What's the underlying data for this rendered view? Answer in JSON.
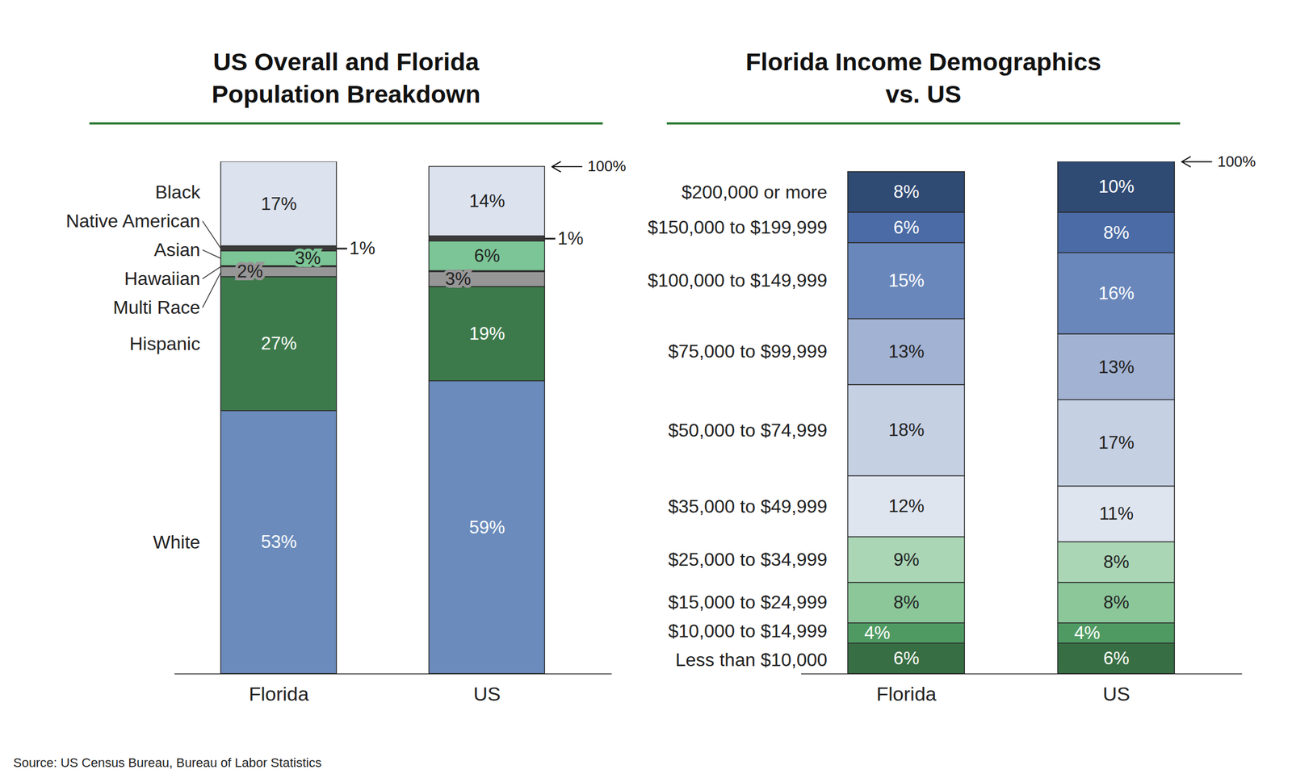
{
  "chart_data": [
    {
      "type": "bar",
      "title": "US Overall and Florida Population Breakdown",
      "categories": [
        "Florida",
        "US"
      ],
      "stacked": true,
      "data_labels": true,
      "tick_labels": "x",
      "annotation": "100%",
      "series": [
        {
          "name": "White",
          "color": "#6a8bbb",
          "values": [
            53,
            59
          ],
          "value_labels": [
            "53%",
            "59%"
          ]
        },
        {
          "name": "Hispanic",
          "color": "#3d7a4b",
          "values": [
            27,
            19
          ],
          "value_labels": [
            "27%",
            "19%"
          ]
        },
        {
          "name": "Multi Race",
          "color": "#969696",
          "values": [
            2,
            3
          ],
          "value_labels": [
            "2%",
            "3%"
          ]
        },
        {
          "name": "Hawaiian",
          "color": "#555555",
          "values": [
            0.2,
            0.2
          ],
          "value_labels": [
            null,
            null
          ]
        },
        {
          "name": "Asian",
          "color": "#7cc596",
          "values": [
            3,
            6
          ],
          "value_labels": [
            "3%",
            "6%"
          ]
        },
        {
          "name": "Native American",
          "color": "#3a3a3a",
          "values": [
            1,
            1
          ],
          "value_labels": [
            "1%",
            "1%"
          ]
        },
        {
          "name": "Black",
          "color": "#dce3ef",
          "values": [
            17,
            14
          ],
          "value_labels": [
            "17%",
            "14%"
          ]
        }
      ]
    },
    {
      "type": "bar",
      "title": "Florida Income Demographics vs. US",
      "categories": [
        "Florida",
        "US"
      ],
      "stacked": true,
      "data_labels": true,
      "tick_labels": "x",
      "annotation": "100%",
      "series": [
        {
          "name": "Less than $10,000",
          "color": "#386e44",
          "values": [
            6,
            6
          ],
          "value_labels": [
            "6%",
            "6%"
          ]
        },
        {
          "name": "$10,000 to $14,999",
          "color": "#4f9a63",
          "values": [
            4,
            4
          ],
          "value_labels": [
            "4%",
            "4%"
          ]
        },
        {
          "name": "$15,000 to $24,999",
          "color": "#8cc79a",
          "values": [
            8,
            8
          ],
          "value_labels": [
            "8%",
            "8%"
          ]
        },
        {
          "name": "$25,000 to $34,999",
          "color": "#abd6b6",
          "values": [
            9,
            8
          ],
          "value_labels": [
            "9%",
            "8%"
          ]
        },
        {
          "name": "$35,000 to $49,999",
          "color": "#dfe5ef",
          "values": [
            12,
            11
          ],
          "value_labels": [
            "12%",
            "11%"
          ]
        },
        {
          "name": "$50,000 to $74,999",
          "color": "#c5d0e3",
          "values": [
            18,
            17
          ],
          "value_labels": [
            "18%",
            "17%"
          ]
        },
        {
          "name": "$75,000 to $99,999",
          "color": "#a2b2d2",
          "values": [
            13,
            13
          ],
          "value_labels": [
            "13%",
            "13%"
          ]
        },
        {
          "name": "$100,000 to $149,999",
          "color": "#6a87bb",
          "values": [
            15,
            16
          ],
          "value_labels": [
            "15%",
            "16%"
          ]
        },
        {
          "name": "$150,000 to $199,999",
          "color": "#4a6ba5",
          "values": [
            6,
            8
          ],
          "value_labels": [
            "6%",
            "8%"
          ]
        },
        {
          "name": "$200,000 or more",
          "color": "#2f4a73",
          "values": [
            8,
            10
          ],
          "value_labels": [
            "8%",
            "10%"
          ]
        }
      ]
    }
  ],
  "source": "Source: US Census Bureau, Bureau of Labor Statistics"
}
